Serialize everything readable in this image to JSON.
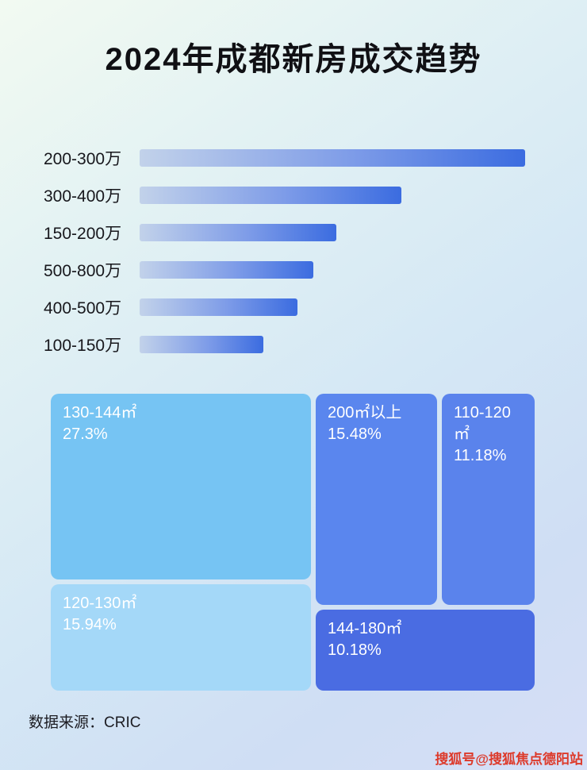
{
  "page": {
    "title": "2024年成都新房成交趋势",
    "source": "数据来源：CRIC",
    "watermark": "搜狐号@搜狐焦点德阳站"
  },
  "colors": {
    "bar_gradient_start": "#c2d2ea",
    "bar_gradient_end": "#3b6ce0",
    "title_text": "#101014",
    "watermark_red": "#dd3a2b"
  },
  "chart_data": [
    {
      "type": "bar",
      "orientation": "horizontal",
      "title": "2024年成都新房成交趋势",
      "categories": [
        "200-300万",
        "300-400万",
        "150-200万",
        "500-800万",
        "400-500万",
        "100-150万"
      ],
      "values": [
        100,
        68,
        51,
        45,
        41,
        32
      ],
      "value_note": "relative bar lengths estimated from pixels; no numeric axis shown",
      "xlabel": "",
      "ylabel": "",
      "grid": false,
      "legend": false
    },
    {
      "type": "treemap",
      "title": "",
      "items": [
        {
          "name": "130-144㎡",
          "pct": "27.3%",
          "value": 27.3,
          "color": "#76c4f3"
        },
        {
          "name": "120-130㎡",
          "pct": "15.94%",
          "value": 15.94,
          "color": "#a4d8f8"
        },
        {
          "name": "200㎡以上",
          "pct": "15.48%",
          "value": 15.48,
          "color": "#5a86ee"
        },
        {
          "name": "110-120㎡",
          "pct": "11.18%",
          "value": 11.18,
          "color": "#5a83ec"
        },
        {
          "name": "144-180㎡",
          "pct": "10.18%",
          "value": 10.18,
          "color": "#4a6ce2"
        }
      ]
    }
  ]
}
